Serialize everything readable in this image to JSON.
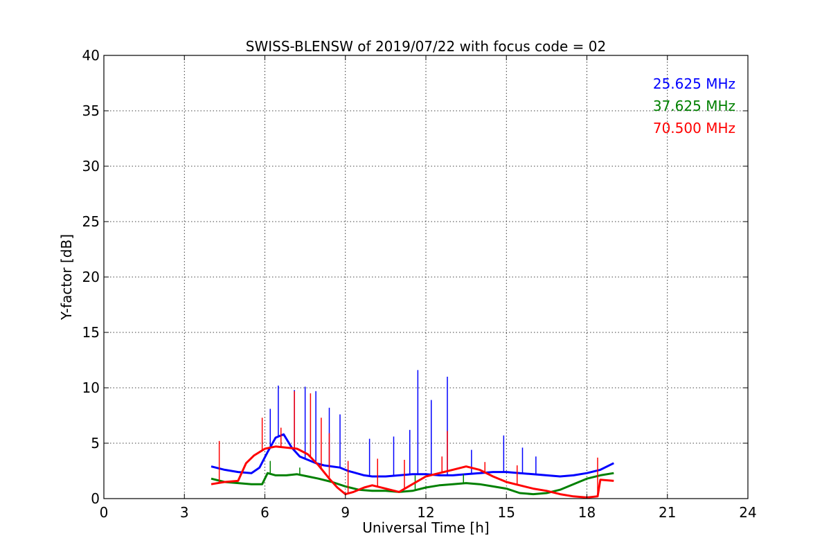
{
  "chart_data": {
    "type": "line",
    "title": "SWISS-BLENSW of 2019/07/22 with focus code = 02",
    "xlabel": "Universal Time [h]",
    "ylabel": "Y-factor [dB]",
    "xlim": [
      0,
      24
    ],
    "ylim": [
      0,
      40
    ],
    "xticks": [
      "0",
      "3",
      "6",
      "9",
      "12",
      "15",
      "18",
      "21",
      "24"
    ],
    "yticks": [
      "0",
      "5",
      "10",
      "15",
      "20",
      "25",
      "30",
      "35",
      "40"
    ],
    "grid": true,
    "legend_position": "top-right",
    "series": [
      {
        "name": "25.625 MHz",
        "color": "#0000ff",
        "x": [
          4.0,
          4.5,
          5.0,
          5.5,
          5.8,
          6.1,
          6.4,
          6.7,
          7.0,
          7.3,
          7.6,
          7.9,
          8.2,
          8.5,
          8.8,
          9.1,
          9.4,
          9.7,
          10.0,
          10.5,
          11.0,
          11.5,
          12.0,
          12.5,
          13.0,
          13.5,
          14.0,
          14.5,
          15.0,
          15.5,
          16.0,
          16.5,
          17.0,
          17.5,
          18.0,
          18.5,
          19.0
        ],
        "values": [
          2.9,
          2.6,
          2.4,
          2.3,
          2.8,
          4.2,
          5.5,
          5.8,
          4.6,
          3.8,
          3.5,
          3.2,
          3.0,
          2.9,
          2.8,
          2.5,
          2.3,
          2.1,
          2.0,
          2.0,
          2.1,
          2.2,
          2.2,
          2.1,
          2.1,
          2.2,
          2.3,
          2.4,
          2.4,
          2.3,
          2.2,
          2.1,
          2.0,
          2.1,
          2.3,
          2.6,
          3.2
        ],
        "spikes": [
          [
            6.2,
            8.1
          ],
          [
            6.5,
            10.2
          ],
          [
            7.1,
            9.8
          ],
          [
            7.5,
            10.1
          ],
          [
            7.9,
            9.7
          ],
          [
            8.4,
            8.2
          ],
          [
            8.8,
            7.6
          ],
          [
            9.9,
            5.4
          ],
          [
            10.8,
            5.6
          ],
          [
            11.4,
            6.2
          ],
          [
            11.7,
            11.6
          ],
          [
            12.2,
            8.9
          ],
          [
            12.8,
            11.0
          ],
          [
            13.7,
            4.4
          ],
          [
            14.9,
            5.7
          ],
          [
            15.6,
            4.6
          ],
          [
            16.1,
            3.8
          ]
        ]
      },
      {
        "name": "37.625 MHz",
        "color": "#008000",
        "x": [
          4.0,
          4.5,
          5.0,
          5.5,
          5.9,
          6.1,
          6.4,
          6.8,
          7.2,
          7.6,
          8.0,
          8.5,
          9.0,
          9.5,
          10.0,
          10.5,
          11.0,
          11.5,
          12.0,
          12.5,
          13.0,
          13.5,
          14.0,
          14.5,
          15.0,
          15.5,
          16.0,
          16.5,
          17.0,
          17.5,
          18.0,
          18.5,
          19.0
        ],
        "values": [
          1.8,
          1.5,
          1.4,
          1.3,
          1.3,
          2.3,
          2.1,
          2.1,
          2.2,
          2.0,
          1.8,
          1.5,
          1.1,
          0.8,
          0.7,
          0.7,
          0.6,
          0.7,
          1.0,
          1.2,
          1.3,
          1.4,
          1.3,
          1.1,
          0.9,
          0.5,
          0.4,
          0.5,
          0.8,
          1.3,
          1.8,
          2.1,
          2.3
        ],
        "spikes": [
          [
            6.2,
            3.4
          ],
          [
            7.3,
            2.8
          ],
          [
            11.6,
            2.1
          ],
          [
            13.4,
            2.2
          ]
        ]
      },
      {
        "name": "70.500 MHz",
        "color": "#ff0000",
        "x": [
          4.0,
          4.5,
          5.0,
          5.3,
          5.6,
          6.0,
          6.4,
          6.8,
          7.2,
          7.6,
          8.0,
          8.4,
          8.7,
          9.0,
          9.3,
          9.7,
          10.0,
          10.5,
          11.0,
          11.5,
          12.0,
          12.5,
          13.0,
          13.5,
          14.0,
          14.5,
          15.0,
          15.5,
          16.0,
          16.5,
          17.0,
          17.5,
          18.0,
          18.4,
          18.5,
          19.0
        ],
        "values": [
          1.3,
          1.5,
          1.6,
          3.2,
          3.9,
          4.5,
          4.7,
          4.6,
          4.5,
          4.0,
          3.0,
          1.8,
          1.0,
          0.4,
          0.6,
          1.0,
          1.2,
          0.9,
          0.6,
          1.3,
          2.0,
          2.3,
          2.6,
          2.9,
          2.6,
          2.0,
          1.5,
          1.2,
          0.9,
          0.7,
          0.4,
          0.2,
          0.1,
          0.2,
          1.7,
          1.6
        ],
        "spikes": [
          [
            4.3,
            5.2
          ],
          [
            5.9,
            7.3
          ],
          [
            6.6,
            6.4
          ],
          [
            7.1,
            9.7
          ],
          [
            7.7,
            9.5
          ],
          [
            8.1,
            7.3
          ],
          [
            8.4,
            5.9
          ],
          [
            9.1,
            3.4
          ],
          [
            10.2,
            3.6
          ],
          [
            11.2,
            3.5
          ],
          [
            12.6,
            3.8
          ],
          [
            12.8,
            6.1
          ],
          [
            14.2,
            3.3
          ],
          [
            15.4,
            3.0
          ],
          [
            18.4,
            3.7
          ]
        ]
      }
    ]
  }
}
